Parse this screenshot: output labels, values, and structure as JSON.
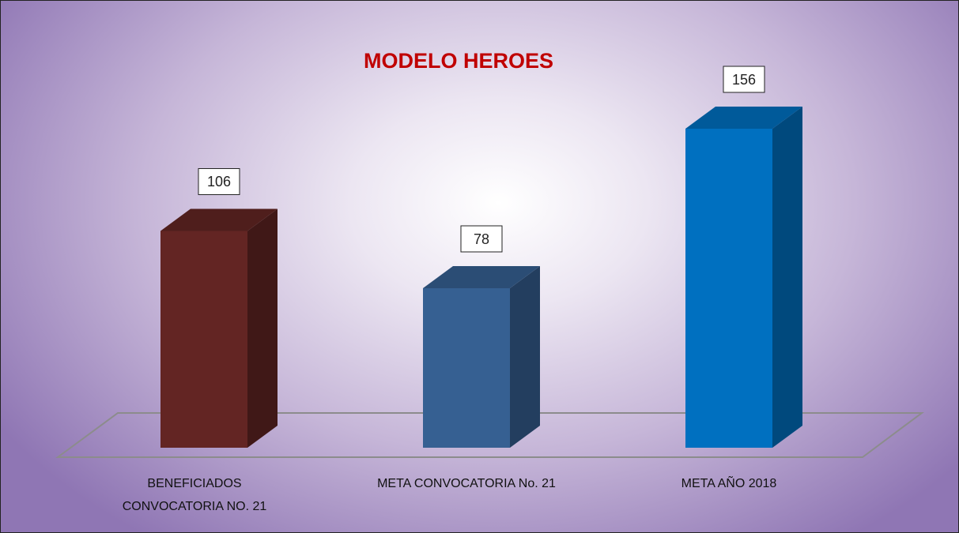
{
  "chart_data": {
    "type": "bar3d",
    "title": "MODELO HEROES",
    "categories": [
      "BENEFICIADOS CONVOCATORIA NO. 21",
      "META CONVOCATORIA No. 21",
      "META AÑO 2018"
    ],
    "values": [
      106,
      78,
      156
    ],
    "colors": [
      "#632523",
      "#366092",
      "#0070c0"
    ]
  }
}
